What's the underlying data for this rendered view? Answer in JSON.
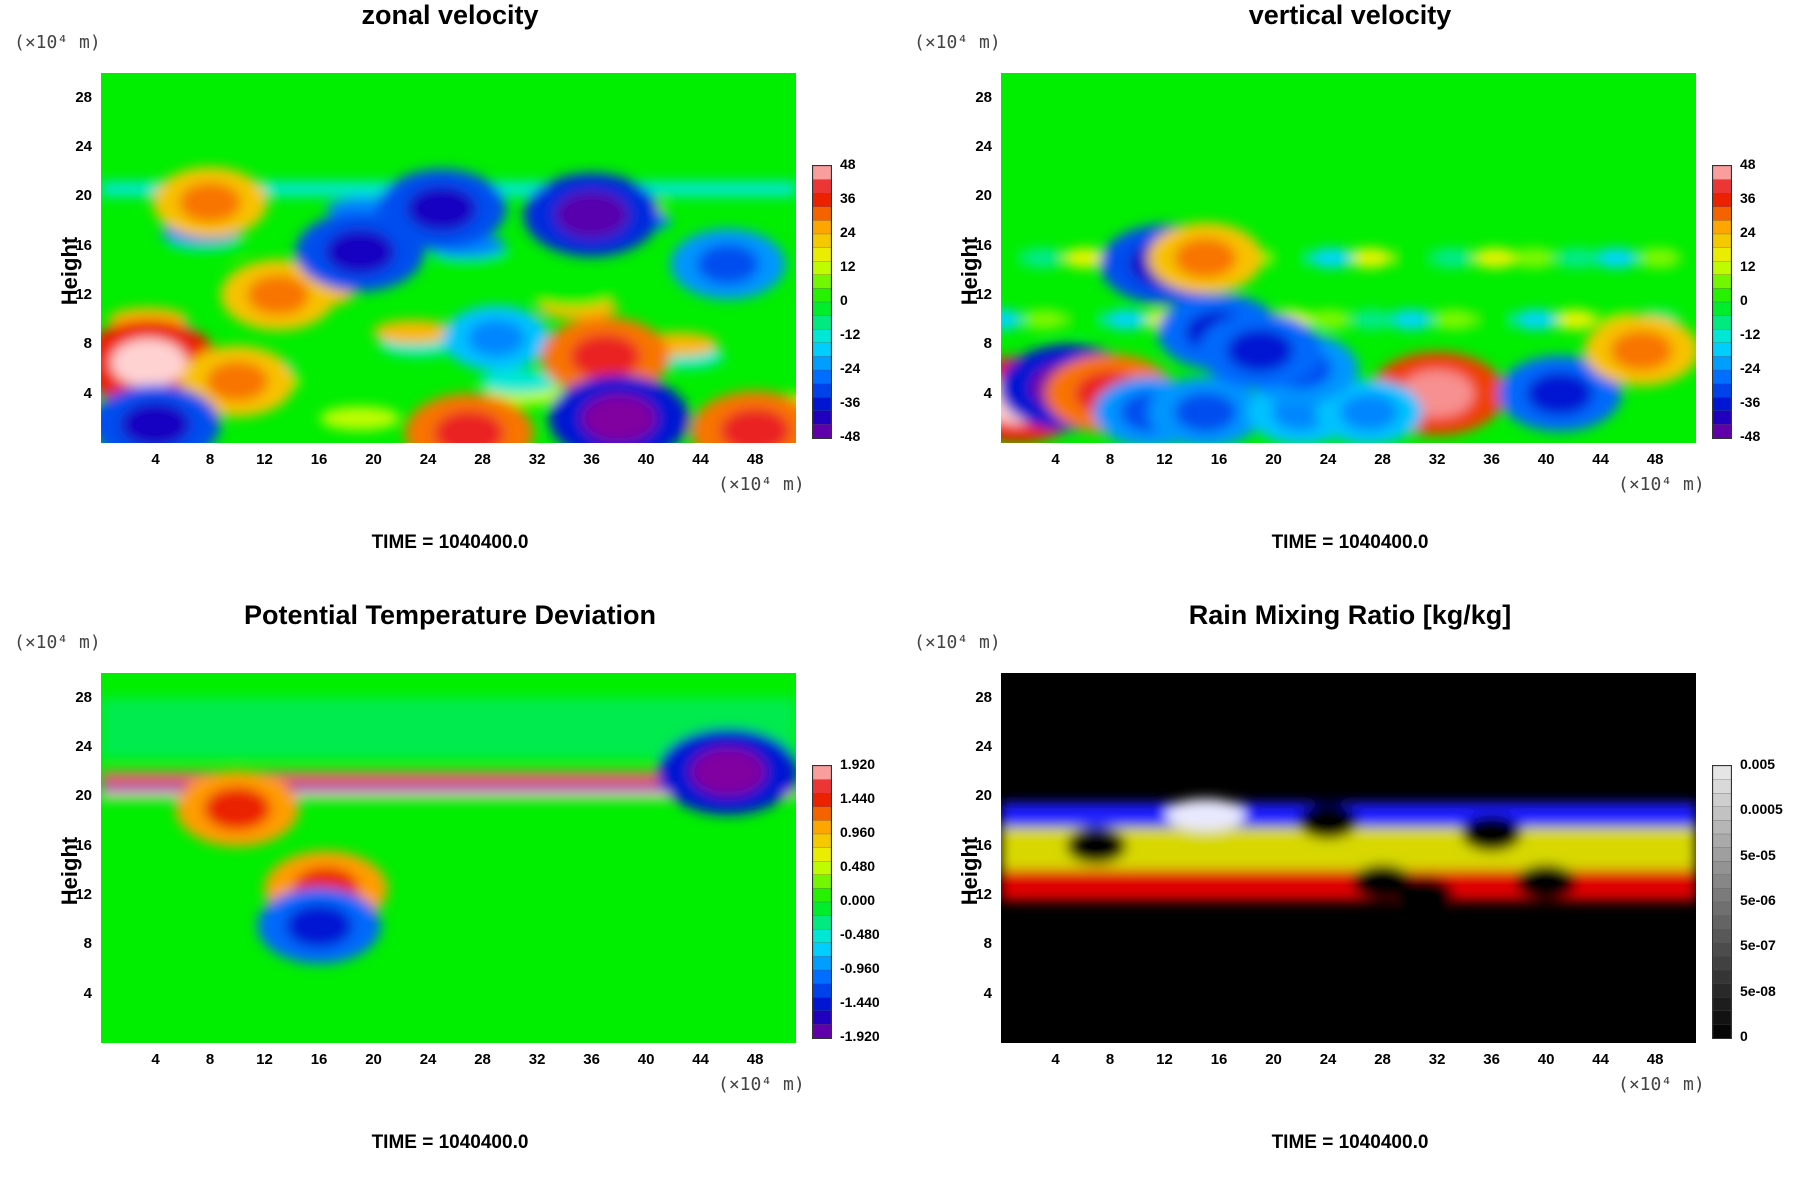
{
  "time_label": "TIME = 1040400.0",
  "axes_common": {
    "ylabel": "Height",
    "y_unit": "(×10⁴ m)",
    "x_unit": "(×10⁴ m)",
    "x_ticks": [
      "4",
      "8",
      "12",
      "16",
      "20",
      "24",
      "28",
      "32",
      "36",
      "40",
      "44",
      "48"
    ],
    "y_ticks": [
      "28",
      "24",
      "20",
      "16",
      "12",
      "8",
      "4"
    ]
  },
  "chart_data": [
    {
      "type": "heatmap",
      "title": "zonal velocity",
      "ylabel": "Height",
      "xlim": [
        0,
        51
      ],
      "ylim": [
        0,
        30
      ],
      "colorbar_ticks": [
        "48",
        "36",
        "24",
        "12",
        "0",
        "-12",
        "-24",
        "-36",
        "-48"
      ],
      "colormap": "rainbow",
      "background": "#00ee00",
      "features": [
        {
          "x": 3.5,
          "y": 6.5,
          "value": 48
        },
        {
          "x": 10,
          "y": 5,
          "value": 30
        },
        {
          "x": 13,
          "y": 12,
          "value": 30
        },
        {
          "x": 19,
          "y": 15.5,
          "value": -40
        },
        {
          "x": 25,
          "y": 19,
          "value": -40
        },
        {
          "x": 36,
          "y": 18.5,
          "value": -45
        },
        {
          "x": 29,
          "y": 8.5,
          "value": -24
        },
        {
          "x": 37,
          "y": 7,
          "value": 40
        },
        {
          "x": 38,
          "y": 2,
          "value": -48
        },
        {
          "x": 27,
          "y": 0.8,
          "value": 40
        },
        {
          "x": 4,
          "y": 1.5,
          "value": -40
        },
        {
          "x": 48,
          "y": 1,
          "value": 40
        },
        {
          "x": 46,
          "y": 14.5,
          "value": -30
        },
        {
          "x": 8,
          "y": 19.5,
          "value": 30
        }
      ]
    },
    {
      "type": "heatmap",
      "title": "vertical velocity",
      "ylabel": "Height",
      "xlim": [
        0,
        51
      ],
      "ylim": [
        0,
        30
      ],
      "colorbar_ticks": [
        "48",
        "36",
        "24",
        "12",
        "0",
        "-12",
        "-24",
        "-36",
        "-48"
      ],
      "colormap": "rainbow",
      "background": "#00ee00",
      "features": [
        {
          "x": 1.2,
          "y": 3.5,
          "value": 48
        },
        {
          "x": 5,
          "y": 4.5,
          "value": -48
        },
        {
          "x": 8,
          "y": 4,
          "value": 40
        },
        {
          "x": 32,
          "y": 4,
          "value": 45
        },
        {
          "x": 41,
          "y": 4,
          "value": -36
        },
        {
          "x": 47,
          "y": 7.5,
          "value": 30
        },
        {
          "x": 11,
          "y": 2.5,
          "value": -30
        },
        {
          "x": 15,
          "y": 2.5,
          "value": -30
        },
        {
          "x": 22,
          "y": 2.5,
          "value": -24
        },
        {
          "x": 27,
          "y": 2.5,
          "value": -24
        },
        {
          "x": 22,
          "y": 6,
          "value": -30
        },
        {
          "x": 12,
          "y": 14.5,
          "value": -40
        },
        {
          "x": 15,
          "y": 15,
          "value": 30
        },
        {
          "x": 16,
          "y": 9,
          "value": -36
        },
        {
          "x": 19,
          "y": 7.5,
          "value": -36
        }
      ]
    },
    {
      "type": "heatmap",
      "title": "Potential Temperature Deviation",
      "ylabel": "Height",
      "xlim": [
        0,
        51
      ],
      "ylim": [
        0,
        30
      ],
      "colorbar_ticks": [
        "1.920",
        "1.440",
        "0.960",
        "0.480",
        "0.000",
        "-0.480",
        "-0.960",
        "-1.440",
        "-1.920"
      ],
      "colormap": "rainbow",
      "background": "#00ee00",
      "features": [
        {
          "x": 25,
          "y": 21,
          "value": 1.92,
          "note": "band"
        },
        {
          "x": 25,
          "y": 20.5,
          "value": -1.92,
          "note": "band"
        },
        {
          "x": 46,
          "y": 22,
          "value": -1.92
        },
        {
          "x": 16.5,
          "y": 12.5,
          "value": 1.44
        },
        {
          "x": 16,
          "y": 9.5,
          "value": -1.44
        },
        {
          "x": 10,
          "y": 19,
          "value": 1.44
        }
      ]
    },
    {
      "type": "heatmap",
      "title": "Rain Mixing Ratio [kg/kg]",
      "ylabel": "Height",
      "xlim": [
        0,
        51
      ],
      "ylim": [
        0,
        30
      ],
      "colorbar_ticks": [
        "0.005",
        "0.0005",
        "5e-05",
        "5e-06",
        "5e-07",
        "5e-08",
        "0"
      ],
      "colormap": "grayscale",
      "background": "#000000",
      "features": [
        {
          "layer": "blue",
          "y_range": [
            17.5,
            19.5
          ]
        },
        {
          "layer": "yellow",
          "y_range": [
            14,
            17.5
          ]
        },
        {
          "layer": "red",
          "y_range": [
            11.5,
            14
          ]
        },
        {
          "layer": "white",
          "x": 15,
          "y": 18.5
        }
      ]
    }
  ]
}
